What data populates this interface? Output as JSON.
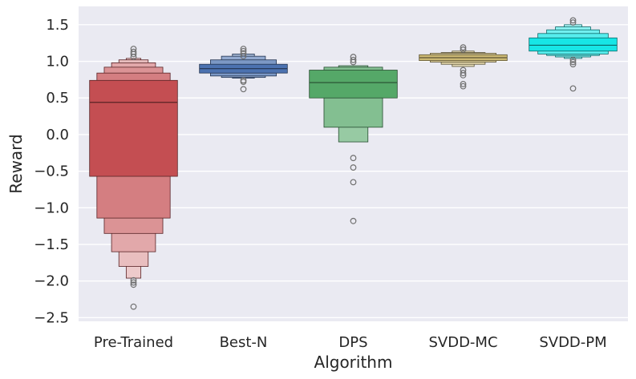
{
  "chart_data": {
    "type": "boxenplot",
    "xlabel": "Algorithm",
    "ylabel": "Reward",
    "ylim": [
      -2.55,
      1.75
    ],
    "yticks": [
      1.5,
      1.0,
      0.5,
      0.0,
      -0.5,
      -1.0,
      -1.5,
      -2.0,
      -2.5
    ],
    "ytick_labels": [
      "1.5",
      "1.0",
      "0.5",
      "0.0",
      "−0.5",
      "−1.0",
      "−1.5",
      "−2.0",
      "−2.5"
    ],
    "grid": true,
    "background": "#EAEAF2",
    "categories": [
      {
        "name": "Pre-Trained",
        "color": "#C44E52",
        "median": 0.44,
        "boxes": [
          [
            -0.57,
            0.74
          ],
          [
            -1.14,
            0.84
          ],
          [
            -1.35,
            0.92
          ],
          [
            -1.6,
            0.98
          ],
          [
            -1.8,
            1.02
          ],
          [
            -1.96,
            1.04
          ]
        ],
        "outliers": [
          1.17,
          1.13,
          1.1,
          1.06,
          -1.99,
          -2.02,
          -2.05,
          -2.35
        ]
      },
      {
        "name": "Best-N",
        "color": "#4C72B0",
        "median": 0.9,
        "boxes": [
          [
            0.84,
            0.96
          ],
          [
            0.8,
            1.02
          ],
          [
            0.78,
            1.07
          ],
          [
            0.77,
            1.1
          ]
        ],
        "outliers": [
          1.17,
          1.14,
          1.11,
          1.07,
          0.74,
          0.72,
          0.62
        ]
      },
      {
        "name": "DPS",
        "color": "#55A868",
        "median": 0.71,
        "boxes": [
          [
            0.5,
            0.88
          ],
          [
            0.1,
            0.92
          ],
          [
            -0.1,
            0.94
          ]
        ],
        "outliers": [
          1.06,
          1.02,
          0.99,
          -0.32,
          -0.45,
          -0.65,
          -1.18
        ]
      },
      {
        "name": "SVDD-MC",
        "color": "#CCB974",
        "median": 1.05,
        "boxes": [
          [
            1.01,
            1.09
          ],
          [
            0.99,
            1.11
          ],
          [
            0.96,
            1.12
          ],
          [
            0.93,
            1.14
          ]
        ],
        "outliers": [
          1.19,
          1.16,
          0.88,
          0.84,
          0.81,
          0.69,
          0.66
        ]
      },
      {
        "name": "SVDD-PM",
        "color": "#17E6E6",
        "median": 1.22,
        "boxes": [
          [
            1.14,
            1.32
          ],
          [
            1.1,
            1.38
          ],
          [
            1.08,
            1.43
          ],
          [
            1.06,
            1.47
          ],
          [
            1.04,
            1.5
          ]
        ],
        "outliers": [
          1.56,
          1.53,
          1.02,
          0.99,
          0.96,
          0.63
        ]
      }
    ]
  }
}
